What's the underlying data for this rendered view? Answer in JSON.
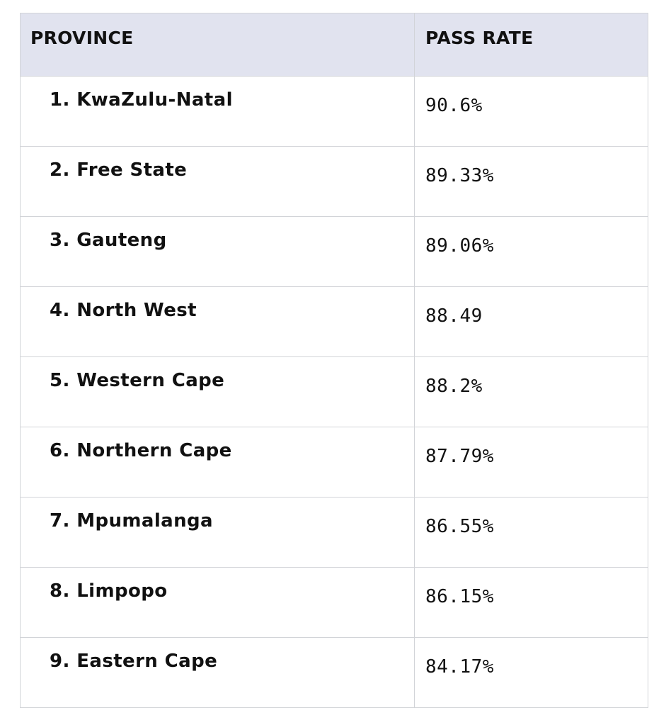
{
  "table": {
    "headers": {
      "province": "PROVINCE",
      "pass_rate": "PASS RATE"
    },
    "rows": [
      {
        "province": "1. KwaZulu-Natal",
        "pass_rate": "90.6%"
      },
      {
        "province": "2. Free State",
        "pass_rate": "89.33%"
      },
      {
        "province": "3. Gauteng",
        "pass_rate": "89.06%"
      },
      {
        "province": "4. North West",
        "pass_rate": "88.49"
      },
      {
        "province": "5. Western Cape",
        "pass_rate": "88.2%"
      },
      {
        "province": "6. Northern Cape",
        "pass_rate": "87.79%"
      },
      {
        "province": "7. Mpumalanga",
        "pass_rate": "86.55%"
      },
      {
        "province": "8. Limpopo",
        "pass_rate": "86.15%"
      },
      {
        "province": "9. Eastern Cape",
        "pass_rate": "84.17%"
      }
    ]
  }
}
